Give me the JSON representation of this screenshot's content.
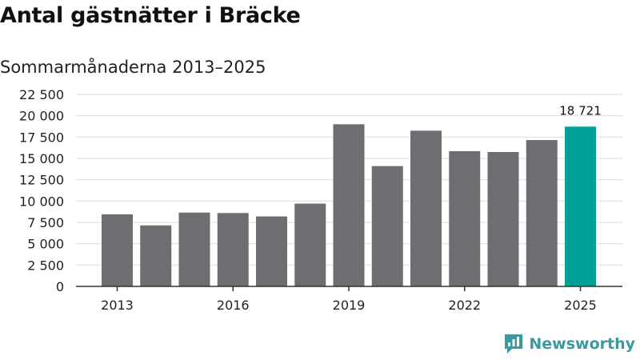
{
  "title": "Antal gästnätter i Bräcke",
  "subtitle": "Sommarmånaderna 2013–2025",
  "brand": {
    "name": "Newsworthy",
    "icon": "newsworthy-logo-icon",
    "color": "#3b9aa0"
  },
  "colors": {
    "bar": "#6e6d72",
    "highlight": "#00a096",
    "grid": "#dddddd",
    "axis": "#333333"
  },
  "chart_data": {
    "type": "bar",
    "title": "Antal gästnätter i Bräcke",
    "subtitle": "Sommarmånaderna 2013–2025",
    "xlabel": "",
    "ylabel": "",
    "categories": [
      "2013",
      "2014",
      "2015",
      "2016",
      "2017",
      "2018",
      "2019",
      "2020",
      "2021",
      "2022",
      "2023",
      "2024",
      "2025"
    ],
    "values": [
      8450,
      7150,
      8650,
      8600,
      8200,
      9700,
      19000,
      14100,
      18250,
      15850,
      15750,
      17150,
      18721
    ],
    "x_tick_labels": [
      "2013",
      "2016",
      "2019",
      "2022",
      "2025"
    ],
    "y_ticks": [
      0,
      2500,
      5000,
      7500,
      10000,
      12500,
      15000,
      17500,
      20000,
      22500
    ],
    "y_tick_labels": [
      "0",
      "2 500",
      "5 000",
      "7 500",
      "10 000",
      "12 500",
      "15 000",
      "17 500",
      "20 000",
      "22 500"
    ],
    "ylim": [
      0,
      22500
    ],
    "grid": true,
    "highlight": {
      "category": "2025",
      "label": "18 721"
    }
  }
}
